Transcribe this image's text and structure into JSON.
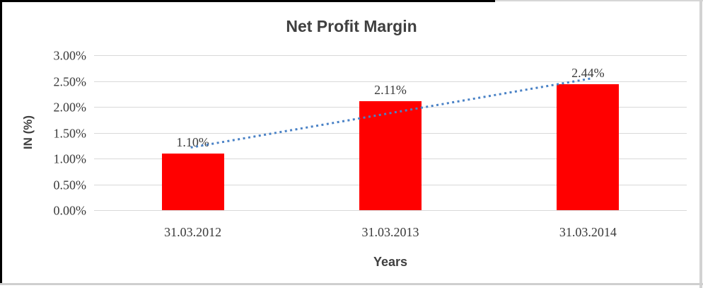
{
  "chart_data": {
    "type": "bar",
    "title": "Net Profit Margin",
    "xlabel": "Years",
    "ylabel": "IN (%)",
    "categories": [
      "31.03.2012",
      "31.03.2013",
      "31.03.2014"
    ],
    "values": [
      1.1,
      2.11,
      2.44
    ],
    "data_labels": [
      "1.10%",
      "2.11%",
      "2.44%"
    ],
    "y_ticks": [
      "0.00%",
      "0.50%",
      "1.00%",
      "1.50%",
      "2.00%",
      "2.50%",
      "3.00%"
    ],
    "y_tick_values": [
      0.0,
      0.5,
      1.0,
      1.5,
      2.0,
      2.5,
      3.0
    ],
    "ylim": [
      0,
      3.0
    ],
    "grid": true,
    "legend": "none",
    "bar_color": "#ff0000",
    "trendline": {
      "type": "linear",
      "style": "dotted",
      "color": "#4a82c6",
      "start_value": 1.213,
      "end_value": 2.553
    }
  }
}
